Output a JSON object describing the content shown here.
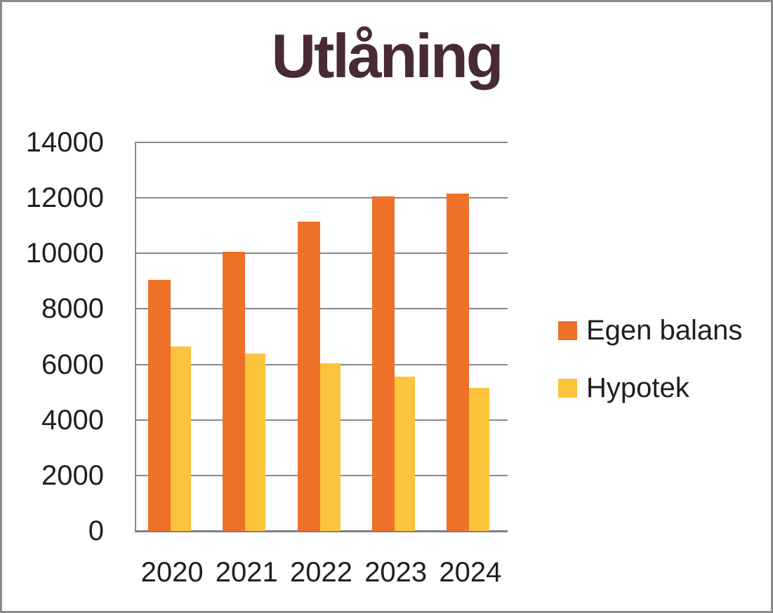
{
  "chart_data": {
    "type": "bar",
    "title": "Utlåning",
    "categories": [
      "2020",
      "2021",
      "2022",
      "2023",
      "2024"
    ],
    "series": [
      {
        "name": "Egen balans",
        "color": "#EE7128",
        "values": [
          9050,
          10050,
          11150,
          12050,
          12150
        ]
      },
      {
        "name": "Hypotek",
        "color": "#FCC33C",
        "values": [
          6650,
          6400,
          6050,
          5550,
          5150
        ]
      }
    ],
    "xlabel": "",
    "ylabel": "",
    "ylim": [
      0,
      14000
    ],
    "yticks": [
      0,
      2000,
      4000,
      6000,
      8000,
      10000,
      12000,
      14000
    ],
    "grid": "horizontal",
    "legend_position": "right",
    "colors": {
      "title": "#482A33",
      "axis_labels": "#1F1F1F",
      "gridline": "#898989",
      "axis_line": "#7F7F7F",
      "frame_border": "#8A8A8A",
      "background": "#FFFFFF"
    }
  }
}
